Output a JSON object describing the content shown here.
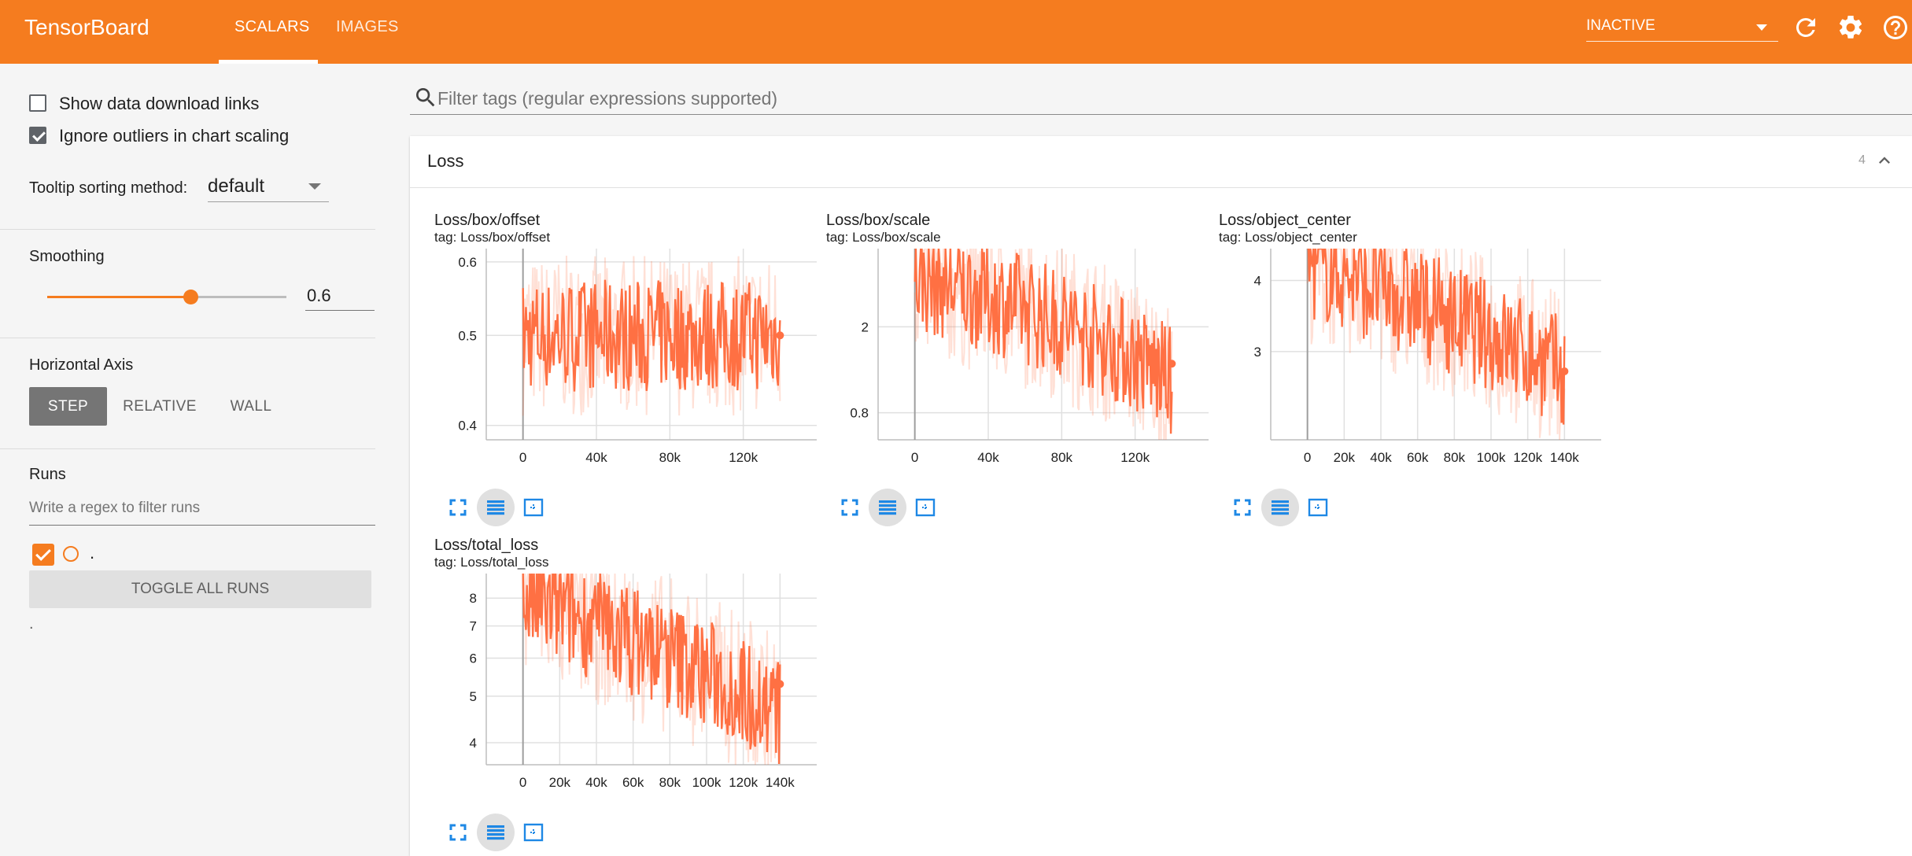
{
  "topbar": {
    "brand": "TensorBoard",
    "tabs": [
      {
        "label": "SCALARS",
        "active": true
      },
      {
        "label": "IMAGES",
        "active": false
      }
    ],
    "run_selector": "INACTIVE",
    "icons": [
      "reload-icon",
      "settings-icon",
      "help-icon"
    ],
    "color": "#f57c1f"
  },
  "sidebar": {
    "show_download_links": {
      "label": "Show data download links",
      "checked": false
    },
    "ignore_outliers": {
      "label": "Ignore outliers in chart scaling",
      "checked": true
    },
    "tooltip_sorting": {
      "label": "Tooltip sorting method:",
      "value": "default"
    },
    "smoothing": {
      "label": "Smoothing",
      "value": "0.6",
      "fraction": 0.6
    },
    "horizontal_axis": {
      "label": "Horizontal Axis",
      "options": [
        {
          "label": "STEP",
          "active": true
        },
        {
          "label": "RELATIVE",
          "active": false
        },
        {
          "label": "WALL",
          "active": false
        }
      ]
    },
    "runs": {
      "label": "Runs",
      "filter_placeholder": "Write a regex to filter runs",
      "items": [
        {
          "name": ".",
          "checked": true,
          "color": "#f57c1f"
        }
      ],
      "toggle_label": "TOGGLE ALL RUNS",
      "footer": "."
    }
  },
  "main": {
    "filter_placeholder": "Filter tags (regular expressions supported)",
    "category": {
      "title": "Loss",
      "count": "4"
    },
    "line_color": "#ff7043",
    "charts": [
      {
        "title": "Loss/box/offset",
        "tag": "tag: Loss/box/offset",
        "chart_data": {
          "type": "line",
          "title": "Loss/box/offset",
          "x_ticks": [
            "0",
            "40k",
            "80k",
            "120k"
          ],
          "y_ticks": [
            "0.4",
            "0.5",
            "0.6"
          ],
          "xlim": [
            -20000,
            160000
          ],
          "ylim": [
            0.386,
            0.62
          ],
          "y_scale": "log",
          "grid": true,
          "series": [
            {
              "x_start": 0,
              "x_end": 140000,
              "y_end": 0.5,
              "ymin": 0.386,
              "ymax": 0.62,
              "level_start": 0.5,
              "level_end": 0.5
            }
          ]
        }
      },
      {
        "title": "Loss/box/scale",
        "tag": "tag: Loss/box/scale",
        "chart_data": {
          "type": "line",
          "title": "Loss/box/scale",
          "x_ticks": [
            "0",
            "40k",
            "80k",
            "120k"
          ],
          "y_ticks": [
            "0.8",
            "2"
          ],
          "xlim": [
            -20000,
            160000
          ],
          "ylim": [
            0.6,
            4.6
          ],
          "y_scale": "log",
          "grid": true,
          "series": [
            {
              "x_start": 0,
              "x_end": 140000,
              "y_end": 1.35,
              "ymin": 0.6,
              "ymax": 4.6,
              "level_start": 3.4,
              "level_end": 1.1
            }
          ]
        }
      },
      {
        "title": "Loss/object_center",
        "tag": "tag: Loss/object_center",
        "chart_data": {
          "type": "line",
          "title": "Loss/object_center",
          "x_ticks": [
            "0",
            "20k",
            "40k",
            "60k",
            "80k",
            "100k",
            "120k",
            "140k"
          ],
          "y_ticks": [
            "3",
            "4"
          ],
          "xlim": [
            -20000,
            160000
          ],
          "ylim": [
            2.1,
            4.55
          ],
          "y_scale": "log",
          "grid": true,
          "series": [
            {
              "x_start": 0,
              "x_end": 140000,
              "y_end": 2.77,
              "ymin": 2.1,
              "ymax": 4.55,
              "level_start": 4.3,
              "level_end": 2.75
            }
          ]
        }
      },
      {
        "title": "Loss/total_loss",
        "tag": "tag: Loss/total_loss",
        "chart_data": {
          "type": "line",
          "title": "Loss/total_loss",
          "x_ticks": [
            "0",
            "20k",
            "40k",
            "60k",
            "80k",
            "100k",
            "120k",
            "140k"
          ],
          "y_ticks": [
            "4",
            "5",
            "6",
            "7",
            "8"
          ],
          "xlim": [
            -20000,
            160000
          ],
          "ylim": [
            3.6,
            9.0
          ],
          "y_scale": "log",
          "grid": true,
          "series": [
            {
              "x_start": 0,
              "x_end": 140000,
              "y_end": 5.3,
              "ymin": 3.6,
              "ymax": 9.0,
              "level_start": 8.0,
              "level_end": 4.6
            }
          ]
        }
      }
    ]
  }
}
